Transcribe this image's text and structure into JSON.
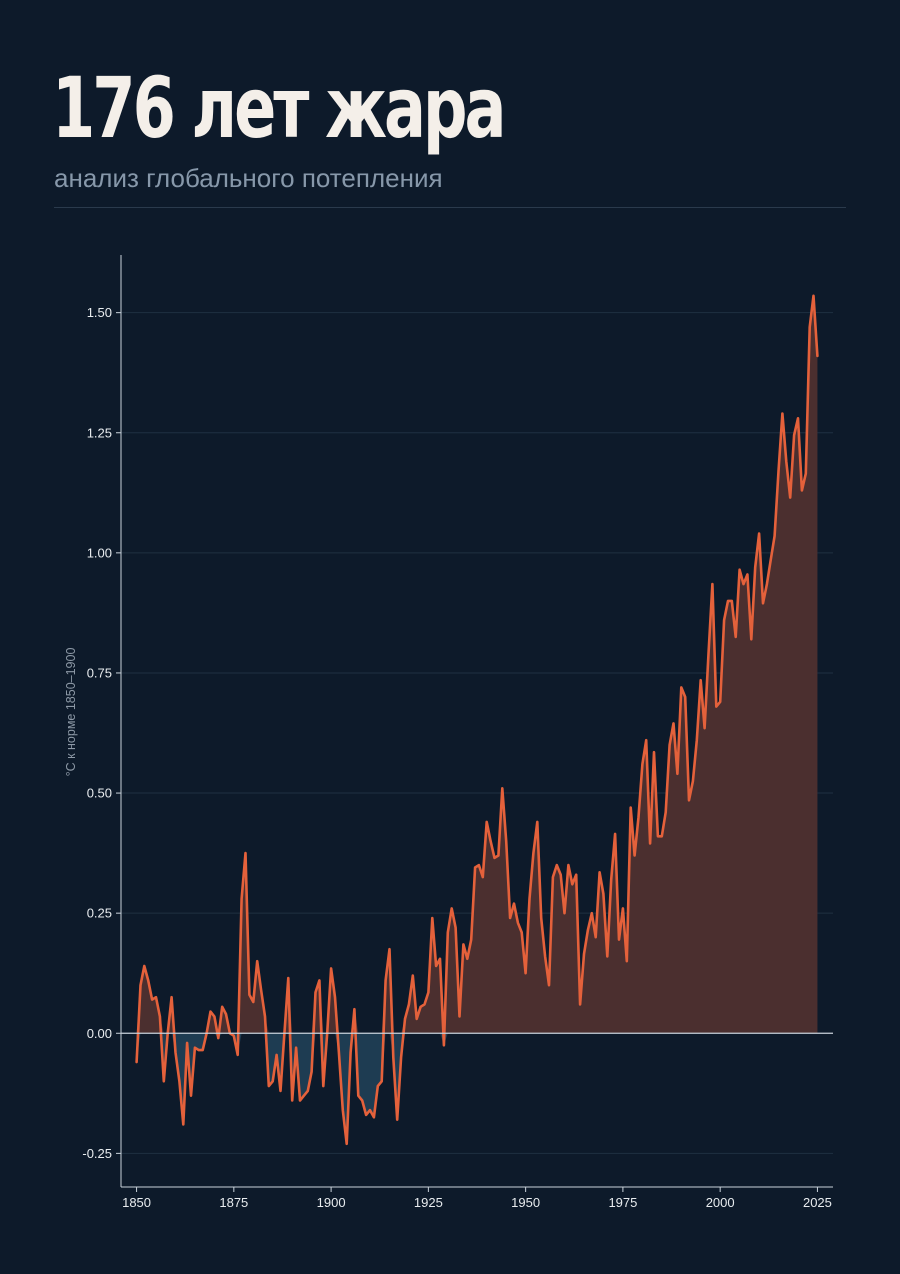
{
  "header": {
    "title": "176 лет жара",
    "subtitle": "анализ глобального потепления"
  },
  "colors": {
    "background": "#0d1a2a",
    "line": "#e4613b",
    "fill_positive": "#4b2f2f",
    "fill_negative": "#1e3c52",
    "grid": "#1f3042",
    "axis": "#c9d2db",
    "tick_text": "#e8ecef",
    "ylabel": "#8d99a6"
  },
  "chart_data": {
    "type": "area",
    "title": "",
    "xlabel": "",
    "ylabel": "°C к норме 1850–1900",
    "xlim": [
      1846,
      2029
    ],
    "ylim": [
      -0.32,
      1.62
    ],
    "xticks": [
      1850,
      1875,
      1900,
      1925,
      1950,
      1975,
      2000,
      2025
    ],
    "yticks": [
      -0.25,
      0.0,
      0.25,
      0.5,
      0.75,
      1.0,
      1.25,
      1.5
    ],
    "ytick_labels": [
      "-0.25",
      "0.00",
      "0.25",
      "0.50",
      "0.75",
      "1.00",
      "1.25",
      "1.50"
    ],
    "xtick_labels": [
      "1850",
      "1875",
      "1900",
      "1925",
      "1950",
      "1975",
      "2000",
      "2025"
    ],
    "grid": "horizontal",
    "baseline": 0,
    "series": [
      {
        "x": [
          1850,
          1851,
          1852,
          1853,
          1854,
          1855,
          1856,
          1857,
          1858,
          1859,
          1860,
          1861,
          1862,
          1863,
          1864,
          1865,
          1866,
          1867,
          1868,
          1869,
          1870,
          1871,
          1872,
          1873,
          1874,
          1875,
          1876,
          1877,
          1878,
          1879,
          1880,
          1881,
          1882,
          1883,
          1884,
          1885,
          1886,
          1887,
          1888,
          1889,
          1890,
          1891,
          1892,
          1893,
          1894,
          1895,
          1896,
          1897,
          1898,
          1899,
          1900,
          1901,
          1902,
          1903,
          1904,
          1905,
          1906,
          1907,
          1908,
          1909,
          1910,
          1911,
          1912,
          1913,
          1914,
          1915,
          1916,
          1917,
          1918,
          1919,
          1920,
          1921,
          1922,
          1923,
          1924,
          1925,
          1926,
          1927,
          1928,
          1929,
          1930,
          1931,
          1932,
          1933,
          1934,
          1935,
          1936,
          1937,
          1938,
          1939,
          1940,
          1941,
          1942,
          1943,
          1944,
          1945,
          1946,
          1947,
          1948,
          1949,
          1950,
          1951,
          1952,
          1953,
          1954,
          1955,
          1956,
          1957,
          1958,
          1959,
          1960,
          1961,
          1962,
          1963,
          1964,
          1965,
          1966,
          1967,
          1968,
          1969,
          1970,
          1971,
          1972,
          1973,
          1974,
          1975,
          1976,
          1977,
          1978,
          1979,
          1980,
          1981,
          1982,
          1983,
          1984,
          1985,
          1986,
          1987,
          1988,
          1989,
          1990,
          1991,
          1992,
          1993,
          1994,
          1995,
          1996,
          1997,
          1998,
          1999,
          2000,
          2001,
          2002,
          2003,
          2004,
          2005,
          2006,
          2007,
          2008,
          2009,
          2010,
          2011,
          2012,
          2013,
          2014,
          2015,
          2016,
          2017,
          2018,
          2019,
          2020,
          2021,
          2022,
          2023,
          2024,
          2025
        ],
        "values": [
          -0.06,
          0.1,
          0.14,
          0.11,
          0.07,
          0.075,
          0.035,
          -0.1,
          0.0,
          0.075,
          -0.04,
          -0.1,
          -0.19,
          -0.02,
          -0.13,
          -0.03,
          -0.035,
          -0.035,
          0.0,
          0.045,
          0.035,
          -0.01,
          0.055,
          0.04,
          0.0,
          -0.005,
          -0.045,
          0.28,
          0.375,
          0.08,
          0.065,
          0.15,
          0.09,
          0.035,
          -0.11,
          -0.1,
          -0.045,
          -0.12,
          0.0,
          0.115,
          -0.14,
          -0.03,
          -0.14,
          -0.13,
          -0.12,
          -0.08,
          0.085,
          0.11,
          -0.11,
          0.0,
          0.135,
          0.075,
          -0.04,
          -0.16,
          -0.23,
          -0.04,
          0.05,
          -0.13,
          -0.14,
          -0.17,
          -0.16,
          -0.175,
          -0.11,
          -0.1,
          0.11,
          0.175,
          -0.05,
          -0.18,
          -0.05,
          0.03,
          0.06,
          0.12,
          0.03,
          0.055,
          0.06,
          0.085,
          0.24,
          0.14,
          0.155,
          -0.025,
          0.21,
          0.26,
          0.22,
          0.035,
          0.185,
          0.155,
          0.195,
          0.345,
          0.35,
          0.325,
          0.44,
          0.4,
          0.365,
          0.37,
          0.51,
          0.4,
          0.24,
          0.27,
          0.23,
          0.21,
          0.125,
          0.28,
          0.375,
          0.44,
          0.24,
          0.16,
          0.1,
          0.325,
          0.35,
          0.33,
          0.25,
          0.35,
          0.31,
          0.33,
          0.06,
          0.165,
          0.215,
          0.25,
          0.2,
          0.335,
          0.29,
          0.16,
          0.32,
          0.415,
          0.195,
          0.26,
          0.15,
          0.47,
          0.37,
          0.45,
          0.56,
          0.61,
          0.395,
          0.585,
          0.41,
          0.41,
          0.46,
          0.6,
          0.645,
          0.54,
          0.72,
          0.7,
          0.485,
          0.525,
          0.61,
          0.735,
          0.635,
          0.79,
          0.935,
          0.68,
          0.69,
          0.86,
          0.9,
          0.9,
          0.825,
          0.965,
          0.935,
          0.955,
          0.82,
          0.97,
          1.04,
          0.895,
          0.935,
          0.985,
          1.035,
          1.17,
          1.29,
          1.19,
          1.115,
          1.245,
          1.28,
          1.13,
          1.165,
          1.47,
          1.535,
          1.41
        ]
      }
    ]
  }
}
